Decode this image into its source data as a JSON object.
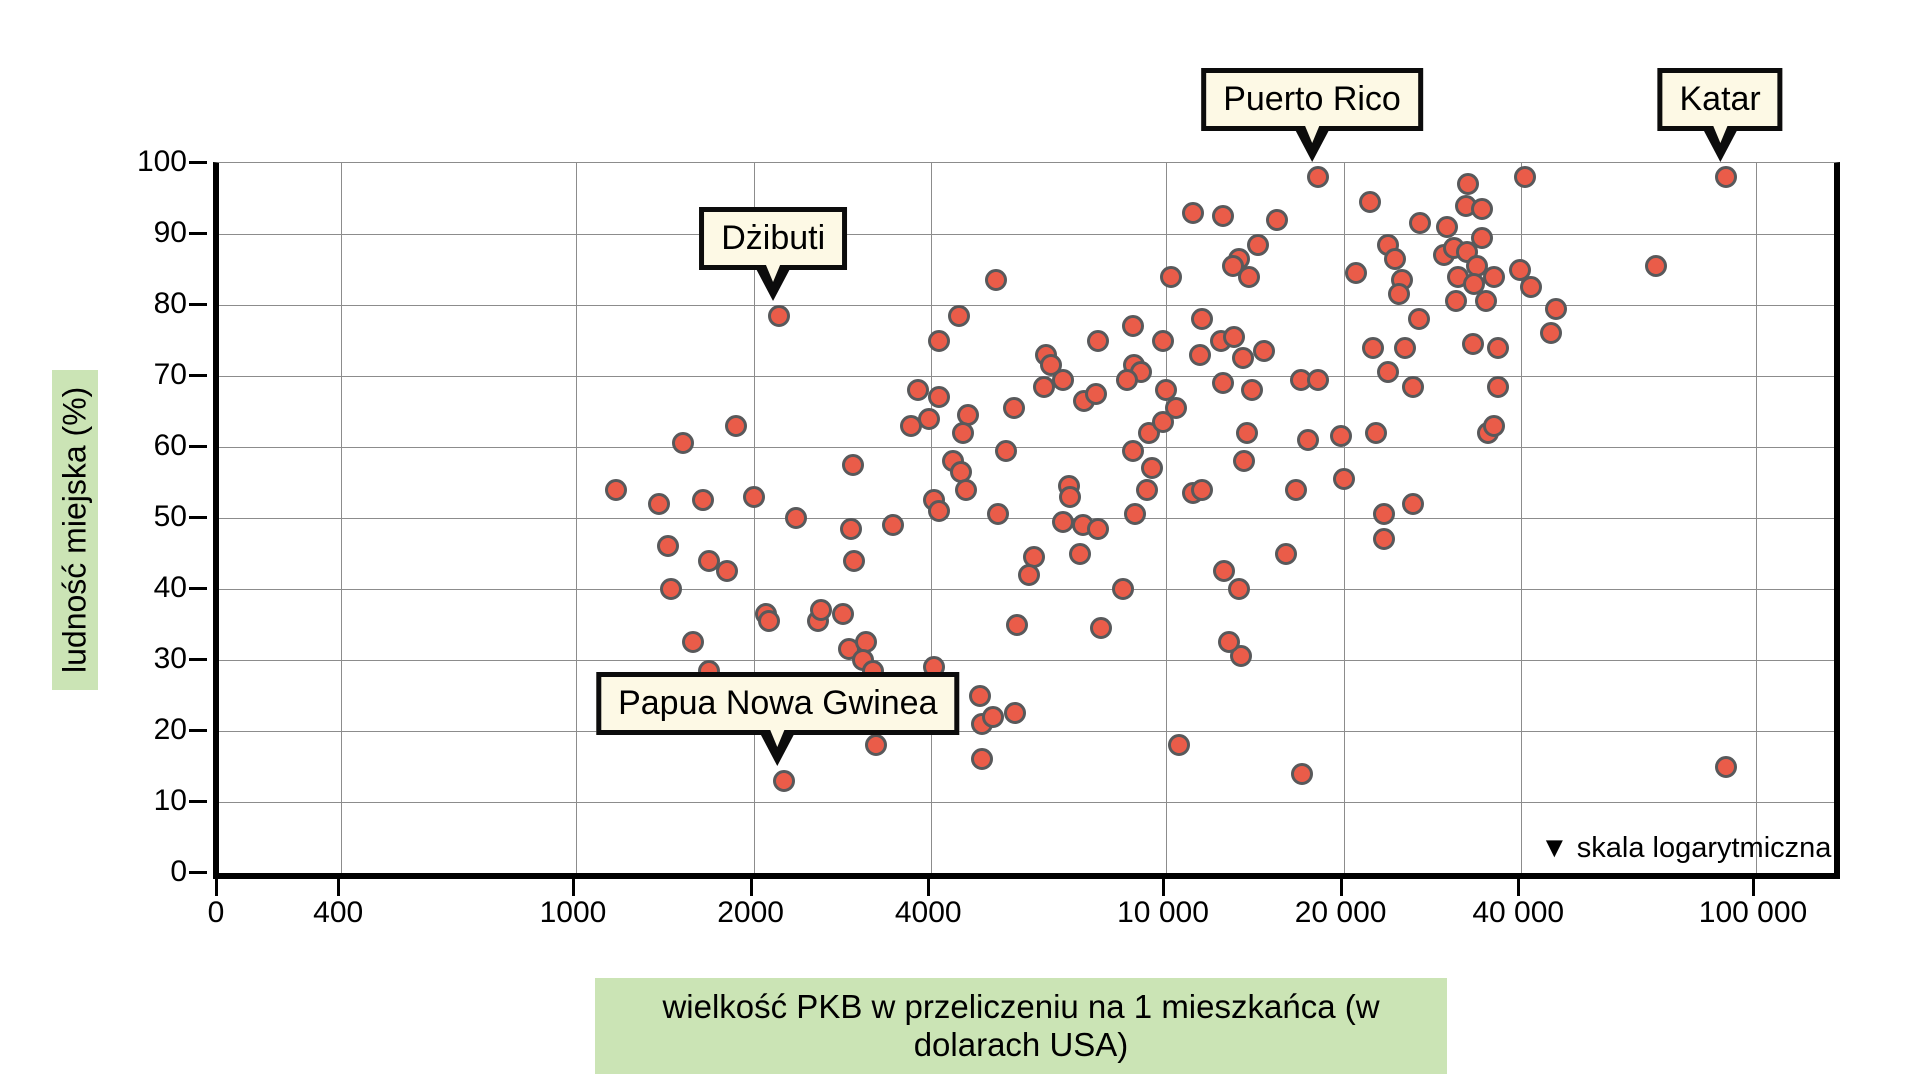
{
  "figure": {
    "y_axis_title": "ludność miejska (%)",
    "x_axis_title": "wielkość PKB w przeliczeniu na 1 mieszkańca (w dolarach USA)",
    "scale_note": "▼ skala logarytmiczna",
    "colors": {
      "dot_fill": "#ea5c49",
      "dot_stroke": "#58595b",
      "grid": "#8c8c8c",
      "axis": "#000000",
      "callout_bg": "#fdf9e5",
      "title_bg": "#cbe4b5"
    }
  },
  "chart_data": {
    "type": "scatter",
    "x_scale": "log",
    "grid": true,
    "xlabel": "wielkość PKB w przeliczeniu na 1 mieszkańca (w dolarach USA)",
    "ylabel": "ludność miejska (%)",
    "ylim": [
      0,
      100
    ],
    "x_ticks": [
      {
        "v": 0,
        "label": "0"
      },
      {
        "v": 400,
        "label": "400"
      },
      {
        "v": 1000,
        "label": "1000"
      },
      {
        "v": 2000,
        "label": "2000"
      },
      {
        "v": 4000,
        "label": "4000"
      },
      {
        "v": 10000,
        "label": "10 000"
      },
      {
        "v": 20000,
        "label": "20 000"
      },
      {
        "v": 40000,
        "label": "40 000"
      },
      {
        "v": 100000,
        "label": "100 000"
      }
    ],
    "y_ticks": [
      0,
      10,
      20,
      30,
      40,
      50,
      60,
      70,
      80,
      90,
      100
    ],
    "callouts": [
      {
        "label": "Dżibuti",
        "x": 2210,
        "y": 78.5
      },
      {
        "label": "Papua Nowa Gwinea",
        "x": 2250,
        "y": 13
      },
      {
        "label": "Puerto Rico",
        "x": 18100,
        "y": 98
      },
      {
        "label": "Katar",
        "x": 89000,
        "y": 98
      }
    ],
    "points": [
      [
        1170,
        54
      ],
      [
        1380,
        52
      ],
      [
        1640,
        52.5
      ],
      [
        2000,
        53
      ],
      [
        2360,
        50
      ],
      [
        1430,
        46
      ],
      [
        1680,
        44
      ],
      [
        1800,
        42.5
      ],
      [
        1450,
        40
      ],
      [
        1520,
        60.5
      ],
      [
        1870,
        63
      ],
      [
        1580,
        32.5
      ],
      [
        1680,
        28.5
      ],
      [
        2100,
        36.5
      ],
      [
        2120,
        35.5
      ],
      [
        2570,
        35.5
      ],
      [
        2600,
        37
      ],
      [
        2840,
        36.5
      ],
      [
        2900,
        31.5
      ],
      [
        3100,
        32.5
      ],
      [
        3070,
        30
      ],
      [
        3190,
        28.5
      ],
      [
        2950,
        57.5
      ],
      [
        2930,
        48.5
      ],
      [
        2960,
        44
      ],
      [
        3230,
        18
      ],
      [
        2250,
        13
      ],
      [
        2210,
        78.5
      ],
      [
        3450,
        49
      ],
      [
        3700,
        63
      ],
      [
        3970,
        64
      ],
      [
        4620,
        64.5
      ],
      [
        4530,
        62
      ],
      [
        4050,
        52.5
      ],
      [
        4120,
        51
      ],
      [
        4350,
        58
      ],
      [
        4500,
        56.5
      ],
      [
        4590,
        54
      ],
      [
        3800,
        68
      ],
      [
        4120,
        67
      ],
      [
        4130,
        75
      ],
      [
        4460,
        78.5
      ],
      [
        5150,
        83.5
      ],
      [
        5360,
        59.5
      ],
      [
        5530,
        65.5
      ],
      [
        5200,
        50.5
      ],
      [
        4050,
        29
      ],
      [
        4830,
        25
      ],
      [
        4870,
        21
      ],
      [
        5090,
        22
      ],
      [
        4870,
        16
      ],
      [
        5600,
        35
      ],
      [
        5550,
        22.5
      ],
      [
        5980,
        44.5
      ],
      [
        5870,
        42
      ],
      [
        6260,
        73
      ],
      [
        6380,
        71.5
      ],
      [
        6200,
        68.5
      ],
      [
        6700,
        69.5
      ],
      [
        6850,
        54.5
      ],
      [
        6880,
        53
      ],
      [
        6700,
        49.5
      ],
      [
        7240,
        49
      ],
      [
        7670,
        48.5
      ],
      [
        7140,
        45
      ],
      [
        7270,
        66.5
      ],
      [
        7620,
        67.5
      ],
      [
        7670,
        75
      ],
      [
        7760,
        34.5
      ],
      [
        8450,
        40
      ],
      [
        8800,
        77
      ],
      [
        8830,
        71.5
      ],
      [
        9070,
        70.5
      ],
      [
        8600,
        69.5
      ],
      [
        8800,
        59.5
      ],
      [
        9370,
        62
      ],
      [
        9450,
        57
      ],
      [
        9270,
        54
      ],
      [
        8850,
        50.5
      ],
      [
        9900,
        75
      ],
      [
        9900,
        63.5
      ],
      [
        10000,
        68
      ],
      [
        10400,
        65.5
      ],
      [
        10200,
        84
      ],
      [
        10500,
        18
      ],
      [
        11100,
        93
      ],
      [
        11100,
        53.5
      ],
      [
        11500,
        54
      ],
      [
        11500,
        78
      ],
      [
        11400,
        73
      ],
      [
        12400,
        75
      ],
      [
        12500,
        92.5
      ],
      [
        12500,
        69
      ],
      [
        12550,
        42.5
      ],
      [
        13050,
        75.5
      ],
      [
        13300,
        86.5
      ],
      [
        13000,
        85.5
      ],
      [
        13300,
        40
      ],
      [
        13400,
        30.5
      ],
      [
        12800,
        32.5
      ],
      [
        13540,
        58
      ],
      [
        13700,
        62
      ],
      [
        13500,
        72.5
      ],
      [
        13800,
        84
      ],
      [
        14000,
        68
      ],
      [
        14300,
        88.5
      ],
      [
        14650,
        73.5
      ],
      [
        15400,
        92
      ],
      [
        16000,
        45
      ],
      [
        16600,
        54
      ],
      [
        16950,
        69.5
      ],
      [
        17000,
        14
      ],
      [
        17400,
        61
      ],
      [
        18100,
        98
      ],
      [
        18100,
        69.5
      ],
      [
        19800,
        61.5
      ],
      [
        20000,
        55.5
      ],
      [
        21000,
        84.5
      ],
      [
        22200,
        94.5
      ],
      [
        22400,
        74
      ],
      [
        22700,
        62
      ],
      [
        23400,
        50.5
      ],
      [
        23400,
        47
      ],
      [
        23800,
        88.5
      ],
      [
        23800,
        70.5
      ],
      [
        24400,
        86.5
      ],
      [
        25100,
        83.5
      ],
      [
        24800,
        81.5
      ],
      [
        25400,
        74
      ],
      [
        26200,
        52
      ],
      [
        26200,
        68.5
      ],
      [
        26800,
        78
      ],
      [
        26900,
        91.5
      ],
      [
        29600,
        87
      ],
      [
        29900,
        91
      ],
      [
        30800,
        88
      ],
      [
        32400,
        87.5
      ],
      [
        32500,
        97
      ],
      [
        40600,
        98
      ],
      [
        32200,
        94
      ],
      [
        34300,
        93.5
      ],
      [
        34300,
        89.5
      ],
      [
        31300,
        84
      ],
      [
        33600,
        85.5
      ],
      [
        36000,
        84
      ],
      [
        33300,
        83
      ],
      [
        31000,
        80.5
      ],
      [
        34900,
        80.5
      ],
      [
        39800,
        85
      ],
      [
        41600,
        82.5
      ],
      [
        45800,
        79.5
      ],
      [
        44900,
        76
      ],
      [
        33100,
        74.5
      ],
      [
        36500,
        74
      ],
      [
        36500,
        68.5
      ],
      [
        35100,
        62
      ],
      [
        36000,
        63
      ],
      [
        67800,
        85.5
      ],
      [
        89000,
        98
      ],
      [
        89000,
        15
      ]
    ]
  }
}
